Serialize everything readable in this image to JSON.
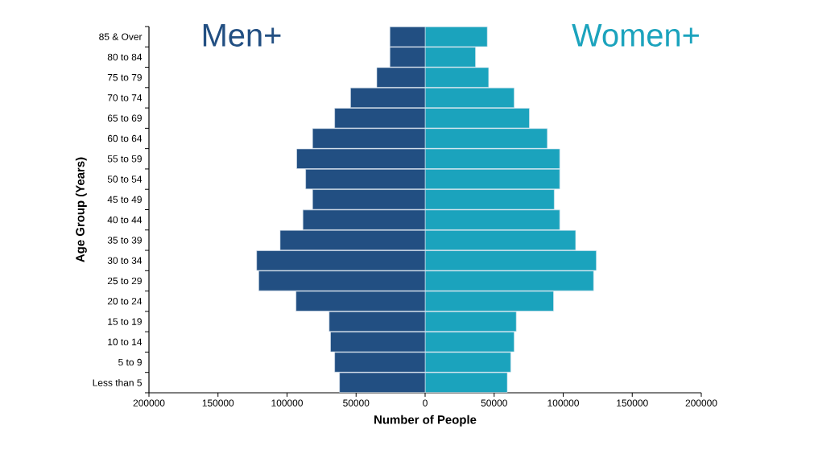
{
  "chart_data": {
    "type": "bar",
    "orientation": "horizontal",
    "stacked": true,
    "xlabel": "Number of People",
    "ylabel": "Age Group (Years)",
    "categories": [
      "85 & Over",
      "80 to 84",
      "75 to 79",
      "70 to 74",
      "65 to 69",
      "60 to 64",
      "55 to 59",
      "50 to 54",
      "45 to 49",
      "40 to 44",
      "35 to 39",
      "30 to 34",
      "25 to 29",
      "20 to 24",
      "15 to 19",
      "10 to 14",
      "5 to 9",
      "Less than 5"
    ],
    "series": [
      {
        "name": "Men+",
        "color": "#224f82",
        "values": [
          -25500,
          -25500,
          -35000,
          -54000,
          -65500,
          -81500,
          -93000,
          -86500,
          -81500,
          -88500,
          -105000,
          -122000,
          -120500,
          -93500,
          -69500,
          -68500,
          -65500,
          -62000
        ]
      },
      {
        "name": "Women+",
        "color": "#1ba3bd",
        "values": [
          45000,
          36500,
          46000,
          64500,
          75500,
          88500,
          97500,
          97500,
          93500,
          97500,
          109000,
          124000,
          122000,
          93000,
          66000,
          64500,
          62000,
          59500
        ]
      }
    ],
    "xlim": [
      -200000,
      200000
    ],
    "xticks": [
      {
        "value": -200000,
        "label": "200000"
      },
      {
        "value": -150000,
        "label": "150000"
      },
      {
        "value": -100000,
        "label": "100000"
      },
      {
        "value": -50000,
        "label": "50000"
      },
      0,
      50000,
      100000,
      150000,
      200000
    ]
  }
}
